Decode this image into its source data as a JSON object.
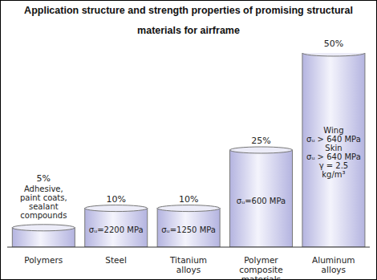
{
  "chart_data": {
    "type": "bar",
    "title": "Application structure and strength properties of promising structural materials for airframe",
    "categories": [
      "Polymers",
      "Steel",
      "Titanium alloys",
      "Polymer composite materials",
      "Aluminum alloys"
    ],
    "values": [
      5,
      10,
      10,
      25,
      50
    ],
    "value_labels": [
      "5%",
      "10%",
      "10%",
      "25%",
      "50%"
    ],
    "data_labels": true,
    "annotations": [
      [
        "Adhesive,",
        "paint coats,",
        "sealant",
        "compounds"
      ],
      [
        "σᵤ=2200 MPa"
      ],
      [
        "σᵤ=1250 MPa"
      ],
      [
        "σᵤ=600 MPa"
      ],
      [
        "Wing",
        "σᵤ > 640 MPa",
        "Skin",
        "σᵤ > 640 MPa",
        "γ = 2.5",
        "kg/m³"
      ]
    ],
    "color": "#b4b4e0",
    "ylim": [
      0,
      50
    ],
    "tick_labels": "x",
    "grid": false
  }
}
